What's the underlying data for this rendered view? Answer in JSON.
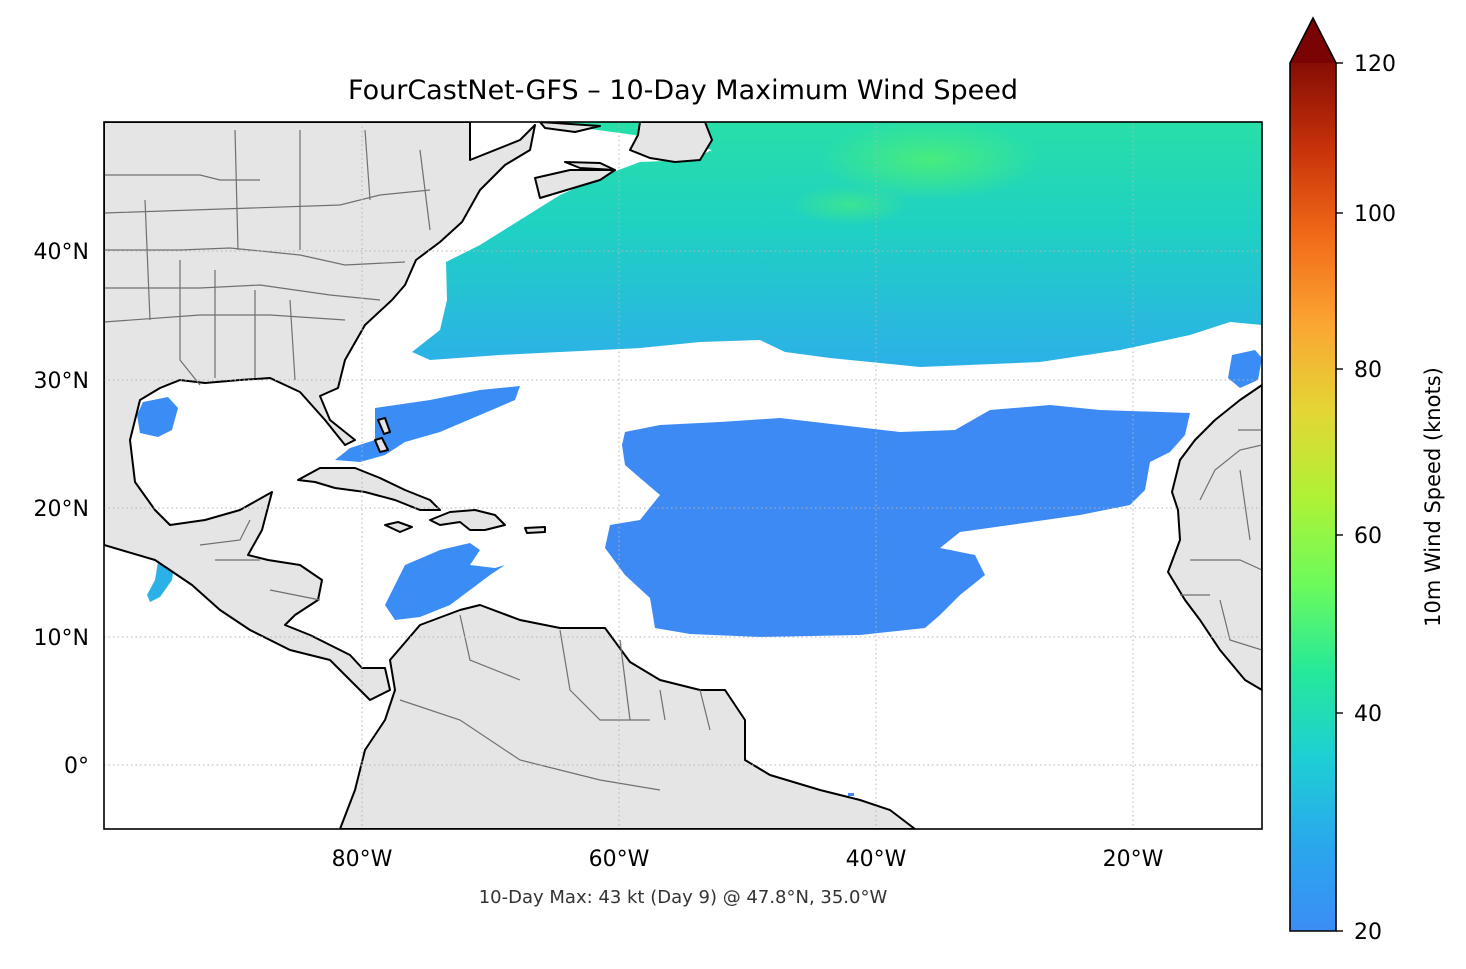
{
  "title": "FourCastNet-GFS – 10-Day Maximum Wind Speed",
  "footer_note": "10-Day Max: 43 kt (Day 9) @ 47.8°N, 35.0°W",
  "map": {
    "lon_ticks": [
      "80°W",
      "60°W",
      "40°W",
      "20°W"
    ],
    "lat_ticks": [
      "40°N",
      "30°N",
      "20°N",
      "10°N",
      "0°"
    ],
    "extent": {
      "lon_min": -100,
      "lon_max": -10,
      "lat_min": -5,
      "lat_max": 50
    },
    "land_color": "#e5e5e5",
    "coastline_color": "#000000",
    "border_color": "#707070",
    "gridlines": "dotted",
    "max_point": {
      "lat": 47.8,
      "lon": -35.0,
      "value_kt": 43,
      "day": 9
    }
  },
  "colorbar": {
    "label": "10m Wind Speed (knots)",
    "ticks": [
      "20",
      "40",
      "60",
      "80",
      "100",
      "120"
    ],
    "range": [
      20,
      120
    ],
    "extend": "max",
    "colormap": "turbo",
    "colors": [
      "#3b8df6",
      "#25bde0",
      "#21e39c",
      "#7dfa4d",
      "#c7ef34",
      "#f6c13a",
      "#fb7e21",
      "#dc3b09",
      "#a61403",
      "#7a0403"
    ]
  }
}
